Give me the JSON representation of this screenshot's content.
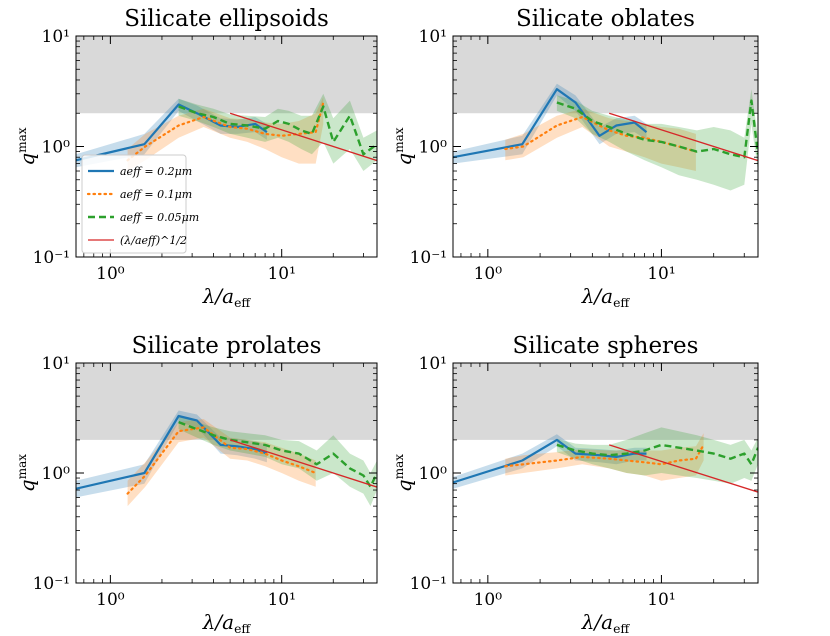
{
  "colors": {
    "blue": "#1f77b4",
    "orange": "#ff7f0e",
    "green": "#2ca02c",
    "red": "#d62728",
    "gray_band": "#d9d9d9"
  },
  "legend": [
    {
      "key": "a02",
      "label": "aeff = 0.2μm",
      "style": "solid",
      "color": "#1f77b4"
    },
    {
      "key": "a01",
      "label": "aeff = 0.1μm",
      "style": "dotted",
      "color": "#ff7f0e"
    },
    {
      "key": "a005",
      "label": "aeff = 0.05μm",
      "style": "dashed",
      "color": "#2ca02c"
    },
    {
      "key": "ref",
      "label": "(λ/aeff)^1/2",
      "style": "thin",
      "color": "#d62728"
    }
  ],
  "chart_data": [
    {
      "type": "line",
      "title": "Silicate ellipsoids",
      "xlabel": "λ/aeff",
      "ylabel": "qmax",
      "xscale": "log",
      "yscale": "log",
      "xlim": [
        0.63,
        36
      ],
      "ylim": [
        0.1,
        10
      ],
      "xticks": [
        {
          "value": 1,
          "label": "10⁰"
        },
        {
          "value": 10,
          "label": "10¹"
        }
      ],
      "yticks": [
        {
          "value": 0.1,
          "label": "10⁻¹"
        },
        {
          "value": 1,
          "label": "10⁰"
        },
        {
          "value": 10,
          "label": "10¹"
        }
      ],
      "shaded_region": {
        "y_from": 2,
        "y_to": 10
      },
      "legend_shown": true,
      "series": [
        {
          "name": "aeff = 0.2μm",
          "key": "a02",
          "x": [
            0.63,
            1.58,
            2.5,
            3.2,
            4.4,
            5.5,
            7.0,
            8.2
          ],
          "y": [
            0.75,
            1.05,
            2.4,
            2.0,
            1.55,
            1.5,
            1.6,
            1.35
          ],
          "lower": [
            0.65,
            0.85,
            2.1,
            1.7,
            1.3,
            1.3,
            1.35,
            1.15
          ],
          "upper": [
            0.85,
            1.3,
            2.7,
            2.35,
            1.8,
            1.75,
            1.85,
            1.6
          ]
        },
        {
          "name": "aeff = 0.1μm",
          "key": "a01",
          "x": [
            1.26,
            1.6,
            2.5,
            3.5,
            5.0,
            6.3,
            8.0,
            10,
            12.6,
            15.8,
            17.5
          ],
          "y": [
            0.75,
            1.0,
            1.55,
            1.85,
            1.5,
            1.45,
            1.3,
            1.25,
            1.3,
            1.35,
            2.5
          ],
          "lower": [
            0.6,
            0.75,
            1.2,
            1.5,
            1.2,
            1.1,
            0.95,
            0.8,
            0.7,
            0.7,
            1.6
          ],
          "upper": [
            0.95,
            1.3,
            1.9,
            2.2,
            1.8,
            1.75,
            1.65,
            1.6,
            1.7,
            2.0,
            2.8
          ]
        },
        {
          "name": "aeff = 0.05μm",
          "key": "a005",
          "x": [
            2.5,
            3.2,
            4.0,
            5.0,
            6.3,
            8.0,
            9.5,
            11,
            13,
            15,
            17.5,
            20,
            25,
            30,
            36
          ],
          "y": [
            2.3,
            2.0,
            1.85,
            1.6,
            1.55,
            1.45,
            1.7,
            1.6,
            1.4,
            1.3,
            2.3,
            1.1,
            1.9,
            0.85,
            1.05
          ],
          "lower": [
            1.9,
            1.7,
            1.5,
            1.3,
            1.2,
            1.1,
            1.2,
            1.1,
            0.95,
            0.85,
            1.1,
            0.7,
            0.95,
            0.6,
            0.75
          ],
          "upper": [
            2.7,
            2.4,
            2.2,
            1.95,
            1.9,
            1.85,
            2.2,
            2.1,
            1.9,
            1.9,
            3.0,
            1.8,
            2.6,
            1.2,
            1.4
          ]
        },
        {
          "name": "(λ/aeff)^1/2",
          "key": "ref",
          "x": [
            5.0,
            36
          ],
          "y": [
            2.0,
            0.745
          ]
        }
      ]
    },
    {
      "type": "line",
      "title": "Silicate oblates",
      "xlabel": "λ/aeff",
      "ylabel": "qmax",
      "xscale": "log",
      "yscale": "log",
      "xlim": [
        0.63,
        36
      ],
      "ylim": [
        0.1,
        10
      ],
      "xticks": [
        {
          "value": 1,
          "label": "10⁰"
        },
        {
          "value": 10,
          "label": "10¹"
        }
      ],
      "yticks": [
        {
          "value": 0.1,
          "label": "10⁻¹"
        },
        {
          "value": 1,
          "label": "10⁰"
        },
        {
          "value": 10,
          "label": "10¹"
        }
      ],
      "shaded_region": {
        "y_from": 2,
        "y_to": 10
      },
      "legend_shown": false,
      "series": [
        {
          "name": "aeff = 0.2μm",
          "key": "a02",
          "x": [
            0.63,
            1.58,
            2.5,
            3.2,
            4.4,
            5.5,
            7.0,
            8.2
          ],
          "y": [
            0.8,
            1.05,
            3.3,
            2.5,
            1.25,
            1.55,
            1.65,
            1.35
          ],
          "lower": [
            0.7,
            0.85,
            2.9,
            2.1,
            1.05,
            1.3,
            1.35,
            1.15
          ],
          "upper": [
            0.9,
            1.25,
            3.7,
            2.9,
            1.5,
            1.8,
            1.9,
            1.6
          ]
        },
        {
          "name": "aeff = 0.1μm",
          "key": "a01",
          "x": [
            1.26,
            1.6,
            2.5,
            3.5,
            5.0,
            6.3,
            8.0,
            10,
            12.6,
            15.8
          ],
          "y": [
            0.95,
            1.0,
            1.55,
            1.85,
            1.4,
            1.25,
            1.2,
            1.1,
            1.0,
            0.9
          ],
          "lower": [
            0.75,
            0.8,
            1.2,
            1.5,
            1.0,
            0.9,
            0.8,
            0.7,
            0.65,
            0.6
          ],
          "upper": [
            1.15,
            1.3,
            1.9,
            2.2,
            1.8,
            1.7,
            1.6,
            1.5,
            1.45,
            1.3
          ]
        },
        {
          "name": "aeff = 0.05μm",
          "key": "a005",
          "x": [
            2.5,
            3.2,
            4.0,
            5.0,
            6.3,
            8.0,
            10,
            12.6,
            16,
            20,
            25,
            30,
            33,
            36
          ],
          "y": [
            2.5,
            2.2,
            1.7,
            1.5,
            1.3,
            1.15,
            1.1,
            1.0,
            0.9,
            0.95,
            0.85,
            0.8,
            2.6,
            0.85
          ],
          "lower": [
            2.1,
            1.8,
            1.3,
            1.1,
            0.9,
            0.75,
            0.65,
            0.55,
            0.5,
            0.45,
            0.4,
            0.45,
            1.6,
            0.6
          ],
          "upper": [
            2.9,
            2.6,
            2.1,
            1.9,
            1.75,
            1.6,
            1.6,
            1.5,
            1.4,
            1.5,
            1.4,
            1.2,
            3.3,
            1.2
          ]
        },
        {
          "name": "(λ/aeff)^1/2",
          "key": "ref",
          "x": [
            5.0,
            36
          ],
          "y": [
            2.0,
            0.745
          ]
        }
      ]
    },
    {
      "type": "line",
      "title": "Silicate prolates",
      "xlabel": "λ/aeff",
      "ylabel": "qmax",
      "xscale": "log",
      "yscale": "log",
      "xlim": [
        0.63,
        36
      ],
      "ylim": [
        0.1,
        10
      ],
      "xticks": [
        {
          "value": 1,
          "label": "10⁰"
        },
        {
          "value": 10,
          "label": "10¹"
        }
      ],
      "yticks": [
        {
          "value": 0.1,
          "label": "10⁻¹"
        },
        {
          "value": 1,
          "label": "10⁰"
        },
        {
          "value": 10,
          "label": "10¹"
        }
      ],
      "shaded_region": {
        "y_from": 2,
        "y_to": 10
      },
      "legend_shown": false,
      "series": [
        {
          "name": "aeff = 0.2μm",
          "key": "a02",
          "x": [
            0.63,
            1.58,
            2.5,
            3.2,
            4.4,
            5.5,
            7.0,
            8.2
          ],
          "y": [
            0.72,
            1.0,
            3.3,
            3.0,
            1.8,
            1.75,
            1.65,
            1.5
          ],
          "lower": [
            0.6,
            0.8,
            2.9,
            2.6,
            1.5,
            1.45,
            1.35,
            1.25
          ],
          "upper": [
            0.85,
            1.2,
            3.7,
            3.4,
            2.1,
            2.05,
            1.95,
            1.8
          ]
        },
        {
          "name": "aeff = 0.1μm",
          "key": "a01",
          "x": [
            1.26,
            1.6,
            2.5,
            3.5,
            5.0,
            6.3,
            8.0,
            10,
            12.6,
            15.8
          ],
          "y": [
            0.65,
            0.95,
            2.4,
            2.6,
            1.7,
            1.65,
            1.5,
            1.3,
            1.15,
            1.0
          ],
          "lower": [
            0.5,
            0.75,
            1.9,
            2.1,
            1.35,
            1.3,
            1.15,
            1.0,
            0.85,
            0.75
          ],
          "upper": [
            0.85,
            1.25,
            2.9,
            3.1,
            2.1,
            2.0,
            1.9,
            1.7,
            1.5,
            1.3
          ]
        },
        {
          "name": "aeff = 0.05μm",
          "key": "a005",
          "x": [
            2.5,
            3.2,
            4.0,
            5.0,
            6.3,
            8.0,
            10,
            12.6,
            16,
            20,
            25,
            30,
            33,
            36
          ],
          "y": [
            2.9,
            2.5,
            2.2,
            2.0,
            1.9,
            1.8,
            1.6,
            1.5,
            1.2,
            1.5,
            1.1,
            0.95,
            0.75,
            1.0
          ],
          "lower": [
            2.5,
            2.1,
            1.8,
            1.6,
            1.5,
            1.4,
            1.2,
            1.1,
            0.85,
            1.0,
            0.75,
            0.65,
            0.5,
            0.7
          ],
          "upper": [
            3.3,
            2.9,
            2.6,
            2.4,
            2.3,
            2.2,
            2.0,
            1.95,
            1.6,
            2.2,
            1.5,
            1.3,
            1.0,
            1.3
          ]
        },
        {
          "name": "(λ/aeff)^1/2",
          "key": "ref",
          "x": [
            5.0,
            36
          ],
          "y": [
            2.0,
            0.745
          ]
        }
      ]
    },
    {
      "type": "line",
      "title": "Silicate spheres",
      "xlabel": "λ/aeff",
      "ylabel": "qmax",
      "xscale": "log",
      "yscale": "log",
      "xlim": [
        0.63,
        36
      ],
      "ylim": [
        0.1,
        10
      ],
      "xticks": [
        {
          "value": 1,
          "label": "10⁰"
        },
        {
          "value": 10,
          "label": "10¹"
        }
      ],
      "yticks": [
        {
          "value": 0.1,
          "label": "10⁻¹"
        },
        {
          "value": 1,
          "label": "10⁰"
        },
        {
          "value": 10,
          "label": "10¹"
        }
      ],
      "shaded_region": {
        "y_from": 2,
        "y_to": 10
      },
      "legend_shown": false,
      "series": [
        {
          "name": "aeff = 0.2μm",
          "key": "a02",
          "x": [
            0.63,
            1.58,
            2.5,
            3.2,
            4.4,
            5.5,
            7.0,
            8.2
          ],
          "y": [
            0.82,
            1.3,
            2.0,
            1.5,
            1.45,
            1.4,
            1.5,
            1.5
          ],
          "lower": [
            0.72,
            1.1,
            1.75,
            1.3,
            1.25,
            1.2,
            1.3,
            1.3
          ],
          "upper": [
            0.92,
            1.5,
            2.25,
            1.7,
            1.65,
            1.6,
            1.7,
            1.7
          ]
        },
        {
          "name": "aeff = 0.1μm",
          "key": "a01",
          "x": [
            1.26,
            1.6,
            2.5,
            3.5,
            5.0,
            6.3,
            8.0,
            10,
            12.6,
            15.8,
            17.5
          ],
          "y": [
            1.15,
            1.2,
            1.3,
            1.4,
            1.35,
            1.3,
            1.25,
            1.2,
            1.3,
            1.35,
            1.8
          ],
          "lower": [
            0.95,
            1.0,
            1.1,
            1.2,
            1.1,
            1.0,
            0.95,
            0.85,
            0.9,
            0.95,
            1.3
          ],
          "upper": [
            1.35,
            1.45,
            1.55,
            1.65,
            1.6,
            1.6,
            1.6,
            1.6,
            1.7,
            1.75,
            2.3
          ]
        },
        {
          "name": "aeff = 0.05μm",
          "key": "a005",
          "x": [
            2.5,
            3.2,
            4.0,
            5.0,
            6.3,
            8.0,
            10,
            12.6,
            16,
            20,
            25,
            30,
            33,
            36
          ],
          "y": [
            1.8,
            1.6,
            1.5,
            1.45,
            1.5,
            1.6,
            1.8,
            1.7,
            1.6,
            1.5,
            1.35,
            1.5,
            1.2,
            1.7
          ],
          "lower": [
            1.55,
            1.35,
            1.2,
            1.1,
            1.0,
            0.95,
            1.0,
            0.95,
            0.9,
            0.85,
            0.8,
            0.9,
            0.85,
            1.2
          ],
          "upper": [
            2.05,
            1.85,
            1.8,
            1.8,
            2.0,
            2.3,
            2.6,
            2.4,
            2.2,
            2.0,
            1.8,
            2.0,
            1.6,
            2.1
          ]
        },
        {
          "name": "(λ/aeff)^1/2",
          "key": "ref",
          "x": [
            5.0,
            36
          ],
          "y": [
            1.8,
            0.67
          ]
        }
      ]
    }
  ]
}
